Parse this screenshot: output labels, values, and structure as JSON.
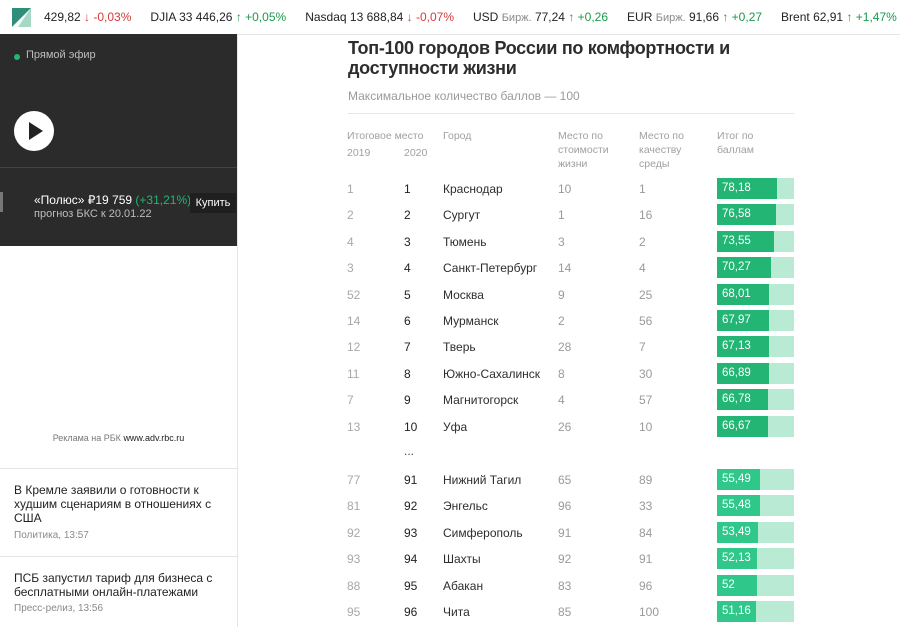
{
  "ticker": {
    "items": [
      {
        "name": "",
        "sub": "",
        "value": "429,82",
        "change": "↓ -0,03%",
        "dir": "down"
      },
      {
        "name": "DJIA",
        "sub": "",
        "value": "33 446,26",
        "change": "↑ +0,05%",
        "dir": "up"
      },
      {
        "name": "Nasdaq",
        "sub": "",
        "value": "13 688,84",
        "change": "↓ -0,07%",
        "dir": "down"
      },
      {
        "name": "USD",
        "sub": "Бирж.",
        "value": "77,24",
        "change": "↑ +0,26",
        "dir": "up"
      },
      {
        "name": "EUR",
        "sub": "Бирж.",
        "value": "91,66",
        "change": "↑ +0,27",
        "dir": "up"
      },
      {
        "name": "Brent",
        "sub": "",
        "value": "62,91",
        "change": "↑ +1,47%",
        "dir": "up"
      },
      {
        "name": "USD",
        "sub": "",
        "value": "",
        "change": "",
        "dir": "up"
      }
    ]
  },
  "sidebar": {
    "live_label": "Прямой эфир",
    "promo": {
      "title": "«Полюс» ₽19 759",
      "change": "(+31,21%)",
      "sub": "прогноз БКС к 20.01.22",
      "buy_label": "Купить"
    },
    "ad_caption_prefix": "Реклама на РБК",
    "ad_caption_link": "www.adv.rbc.ru",
    "news": [
      {
        "title": "В Кремле заявили о готовности к худшим сценариям в отношениях с США",
        "meta": "Политика, 13:57"
      },
      {
        "title": "ПСБ запустил тариф для бизнеса с бесплатными онлайн-платежами",
        "meta": "Пресс-релиз, 13:56"
      }
    ]
  },
  "chart_data": {
    "type": "table",
    "title": "Топ-100 городов России по комфортности и доступности жизни",
    "subtitle": "Максимальное количество баллов — 100",
    "headers": {
      "rank_group": "Итоговое место",
      "rank_2019": "2019",
      "rank_2020": "2020",
      "city": "Город",
      "cost": "Место по стоимости жизни",
      "env": "Место по качеству среды",
      "score": "Итог по баллам"
    },
    "ellipsis": "...",
    "score_max": 100,
    "colors": {
      "bar_top": "#22b573",
      "bar_bottom": "#2fc88a",
      "track": "#b8ead4"
    },
    "top_rows": [
      {
        "r2019": "1",
        "r2020": "1",
        "city": "Краснодар",
        "cost": "10",
        "env": "1",
        "score": 78.18,
        "score_label": "78,18"
      },
      {
        "r2019": "2",
        "r2020": "2",
        "city": "Сургут",
        "cost": "1",
        "env": "16",
        "score": 76.58,
        "score_label": "76,58"
      },
      {
        "r2019": "4",
        "r2020": "3",
        "city": "Тюмень",
        "cost": "3",
        "env": "2",
        "score": 73.55,
        "score_label": "73,55"
      },
      {
        "r2019": "3",
        "r2020": "4",
        "city": "Санкт-Петербург",
        "cost": "14",
        "env": "4",
        "score": 70.27,
        "score_label": "70,27"
      },
      {
        "r2019": "52",
        "r2020": "5",
        "city": "Москва",
        "cost": "9",
        "env": "25",
        "score": 68.01,
        "score_label": "68,01"
      },
      {
        "r2019": "14",
        "r2020": "6",
        "city": "Мурманск",
        "cost": "2",
        "env": "56",
        "score": 67.97,
        "score_label": "67,97"
      },
      {
        "r2019": "12",
        "r2020": "7",
        "city": "Тверь",
        "cost": "28",
        "env": "7",
        "score": 67.13,
        "score_label": "67,13"
      },
      {
        "r2019": "11",
        "r2020": "8",
        "city": "Южно-Сахалинск",
        "cost": "8",
        "env": "30",
        "score": 66.89,
        "score_label": "66,89"
      },
      {
        "r2019": "7",
        "r2020": "9",
        "city": "Магнитогорск",
        "cost": "4",
        "env": "57",
        "score": 66.78,
        "score_label": "66,78"
      },
      {
        "r2019": "13",
        "r2020": "10",
        "city": "Уфа",
        "cost": "26",
        "env": "10",
        "score": 66.67,
        "score_label": "66,67"
      }
    ],
    "bottom_rows": [
      {
        "r2019": "77",
        "r2020": "91",
        "city": "Нижний Тагил",
        "cost": "65",
        "env": "89",
        "score": 55.49,
        "score_label": "55,49"
      },
      {
        "r2019": "81",
        "r2020": "92",
        "city": "Энгельс",
        "cost": "96",
        "env": "33",
        "score": 55.48,
        "score_label": "55,48"
      },
      {
        "r2019": "92",
        "r2020": "93",
        "city": "Симферополь",
        "cost": "91",
        "env": "84",
        "score": 53.49,
        "score_label": "53,49"
      },
      {
        "r2019": "93",
        "r2020": "94",
        "city": "Шахты",
        "cost": "92",
        "env": "91",
        "score": 52.13,
        "score_label": "52,13"
      },
      {
        "r2019": "88",
        "r2020": "95",
        "city": "Абакан",
        "cost": "83",
        "env": "96",
        "score": 52,
        "score_label": "52"
      },
      {
        "r2019": "95",
        "r2020": "96",
        "city": "Чита",
        "cost": "85",
        "env": "100",
        "score": 51.16,
        "score_label": "51,16"
      }
    ]
  }
}
